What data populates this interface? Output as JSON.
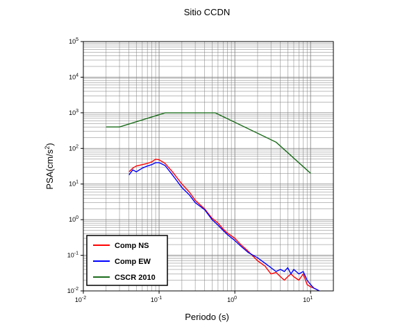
{
  "chart_data": {
    "type": "line",
    "title": "Sitio CCDN",
    "xlabel": "Periodo (s)",
    "ylabel_base": "PSA(cm/s",
    "ylabel_sup": "2",
    "ylabel_end": ")",
    "xscale": "log",
    "yscale": "log",
    "xlim": [
      0.01,
      20
    ],
    "ylim": [
      0.01,
      100000
    ],
    "grid": true,
    "legend_position": "bottom-left",
    "x_ticks": [
      {
        "base": "10",
        "exp": "-2"
      },
      {
        "base": "10",
        "exp": "-1"
      },
      {
        "base": "10",
        "exp": "0"
      },
      {
        "base": "10",
        "exp": "1"
      }
    ],
    "y_ticks": [
      {
        "base": "10",
        "exp": "-2"
      },
      {
        "base": "10",
        "exp": "-1"
      },
      {
        "base": "10",
        "exp": "0"
      },
      {
        "base": "10",
        "exp": "1"
      },
      {
        "base": "10",
        "exp": "2"
      },
      {
        "base": "10",
        "exp": "3"
      },
      {
        "base": "10",
        "exp": "4"
      },
      {
        "base": "10",
        "exp": "5"
      }
    ],
    "series": [
      {
        "name": "Comp NS",
        "color": "#ff0000",
        "x": [
          0.04,
          0.045,
          0.05,
          0.06,
          0.07,
          0.08,
          0.09,
          0.1,
          0.12,
          0.15,
          0.2,
          0.25,
          0.3,
          0.4,
          0.5,
          0.6,
          0.7,
          0.8,
          1.0,
          1.2,
          1.5,
          2.0,
          2.5,
          3.0,
          3.5,
          4.0,
          4.5,
          5.0,
          5.5,
          6.0,
          7.0,
          8.0,
          9.0,
          10.0,
          11.0,
          12.0,
          13.0
        ],
        "values": [
          22,
          28,
          32,
          35,
          38,
          42,
          50,
          48,
          38,
          22,
          10,
          6,
          3.5,
          2.0,
          1.1,
          0.8,
          0.55,
          0.42,
          0.3,
          0.2,
          0.13,
          0.07,
          0.05,
          0.03,
          0.033,
          0.025,
          0.02,
          0.025,
          0.03,
          0.025,
          0.02,
          0.03,
          0.015,
          0.013,
          0.012,
          0.011,
          0.01
        ]
      },
      {
        "name": "Comp EW",
        "color": "#0000ff",
        "x": [
          0.04,
          0.045,
          0.05,
          0.06,
          0.07,
          0.08,
          0.09,
          0.1,
          0.12,
          0.15,
          0.2,
          0.25,
          0.3,
          0.4,
          0.5,
          0.6,
          0.7,
          0.8,
          1.0,
          1.2,
          1.5,
          2.0,
          2.5,
          3.0,
          3.5,
          4.0,
          4.5,
          5.0,
          5.5,
          6.0,
          7.0,
          8.0,
          9.0,
          10.0,
          11.0,
          12.0,
          13.0
        ],
        "values": [
          18,
          25,
          22,
          28,
          32,
          35,
          40,
          40,
          33,
          18,
          8,
          5,
          3.0,
          1.9,
          1.0,
          0.7,
          0.5,
          0.38,
          0.26,
          0.18,
          0.12,
          0.085,
          0.06,
          0.045,
          0.035,
          0.04,
          0.035,
          0.045,
          0.03,
          0.04,
          0.03,
          0.035,
          0.02,
          0.015,
          0.012,
          0.011,
          0.01
        ]
      },
      {
        "name": "CSCR 2010",
        "color": "#1a6b1a",
        "x": [
          0.02,
          0.03,
          0.12,
          0.55,
          3.5,
          10.0
        ],
        "values": [
          400,
          400,
          1000,
          1000,
          150,
          20
        ]
      }
    ]
  }
}
